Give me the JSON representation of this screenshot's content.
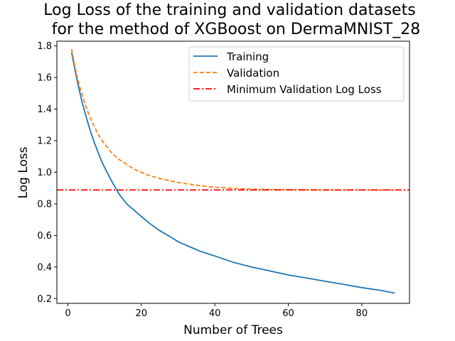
{
  "chart_data": {
    "type": "line",
    "title": [
      "Log Loss of the training and validation datasets",
      "for the method of XGBoost on DermaMNIST_28"
    ],
    "xlabel": "Number of Trees",
    "ylabel": "Log Loss",
    "xlim": [
      -3,
      93
    ],
    "ylim": [
      0.17,
      1.83
    ],
    "xticks": [
      0,
      20,
      40,
      60,
      80
    ],
    "yticks": [
      0.2,
      0.4,
      0.6,
      0.8,
      1.0,
      1.2,
      1.4,
      1.6,
      1.8
    ],
    "legend_position": "top-right",
    "series": [
      {
        "name": "Training",
        "color": "#1f77b4",
        "style": "solid",
        "x": [
          1,
          2,
          3,
          4,
          5,
          6,
          7,
          8,
          9,
          10,
          12,
          14,
          16,
          18,
          20,
          22,
          25,
          28,
          30,
          33,
          36,
          40,
          45,
          50,
          55,
          60,
          65,
          70,
          75,
          80,
          85,
          89
        ],
        "y": [
          1.76,
          1.64,
          1.53,
          1.43,
          1.35,
          1.27,
          1.2,
          1.14,
          1.08,
          1.03,
          0.94,
          0.86,
          0.8,
          0.76,
          0.72,
          0.68,
          0.63,
          0.59,
          0.56,
          0.53,
          0.5,
          0.47,
          0.43,
          0.4,
          0.375,
          0.35,
          0.33,
          0.31,
          0.29,
          0.27,
          0.253,
          0.235
        ]
      },
      {
        "name": "Validation",
        "color": "#ff7f0e",
        "style": "dashed",
        "x": [
          1,
          2,
          3,
          4,
          5,
          6,
          7,
          8,
          9,
          10,
          12,
          14,
          16,
          18,
          20,
          22,
          25,
          28,
          30,
          33,
          36,
          40,
          45,
          50,
          55,
          60,
          65,
          70,
          75,
          80,
          85,
          89
        ],
        "y": [
          1.78,
          1.66,
          1.56,
          1.48,
          1.41,
          1.35,
          1.3,
          1.25,
          1.21,
          1.18,
          1.12,
          1.08,
          1.05,
          1.02,
          1.0,
          0.98,
          0.96,
          0.945,
          0.935,
          0.925,
          0.915,
          0.905,
          0.898,
          0.893,
          0.891,
          0.89,
          0.889,
          0.888,
          0.888,
          0.888,
          0.888,
          0.888
        ]
      },
      {
        "name": "Minimum Validation Log Loss",
        "color": "#ff0000",
        "style": "dashdot",
        "hline": 0.888
      }
    ]
  }
}
